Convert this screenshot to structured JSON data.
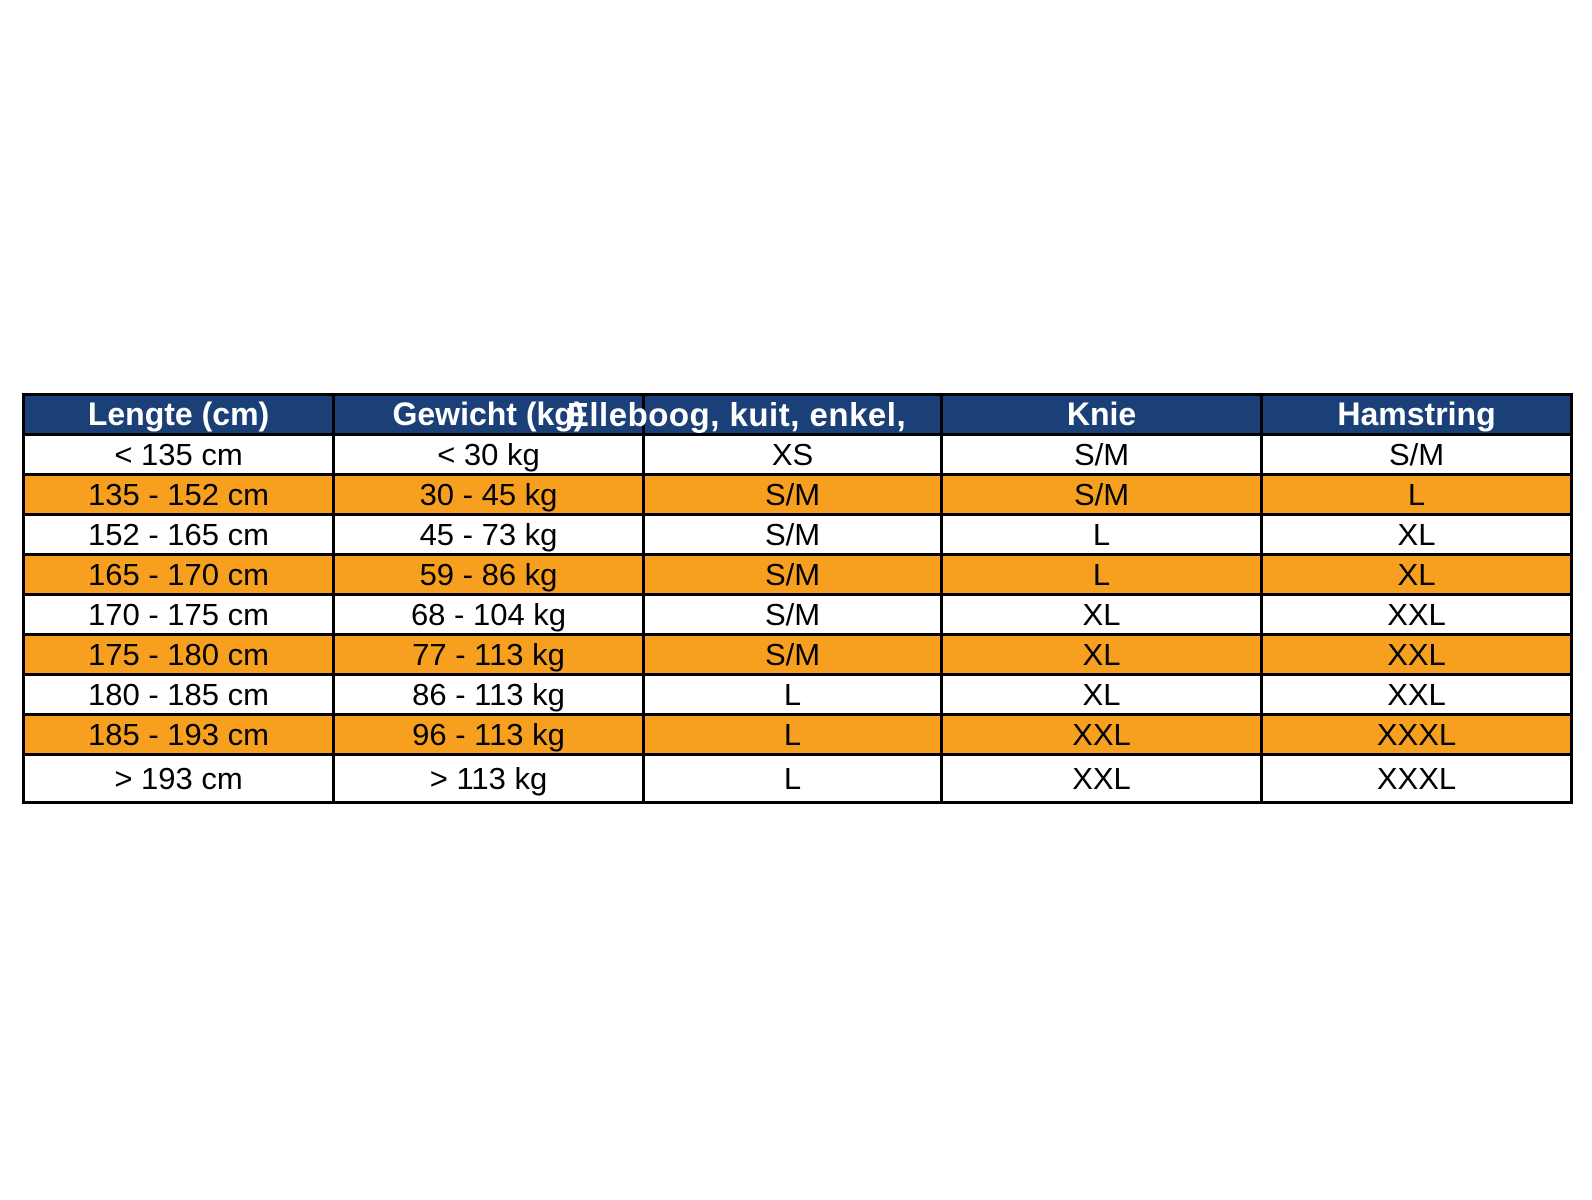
{
  "table": {
    "headers": [
      {
        "label": "Lengte (cm)"
      },
      {
        "label": "Gewicht (kg)"
      },
      {
        "label": "Elleboog, kuit, enkel,"
      },
      {
        "label": "Knie"
      },
      {
        "label": "Hamstring"
      }
    ],
    "rows": [
      {
        "cells": [
          "< 135 cm",
          "< 30 kg",
          "XS",
          "S/M",
          "S/M"
        ],
        "highlighted": false
      },
      {
        "cells": [
          "135 - 152 cm",
          "30 - 45 kg",
          "S/M",
          "S/M",
          "L"
        ],
        "highlighted": true
      },
      {
        "cells": [
          "152 - 165 cm",
          "45 - 73 kg",
          "S/M",
          "L",
          "XL"
        ],
        "highlighted": false
      },
      {
        "cells": [
          "165 - 170 cm",
          "59 - 86 kg",
          "S/M",
          "L",
          "XL"
        ],
        "highlighted": true
      },
      {
        "cells": [
          "170 - 175 cm",
          "68 - 104 kg",
          "S/M",
          "XL",
          "XXL"
        ],
        "highlighted": false
      },
      {
        "cells": [
          "175 - 180 cm",
          "77 - 113 kg",
          "S/M",
          "XL",
          "XXL"
        ],
        "highlighted": true
      },
      {
        "cells": [
          "180 - 185 cm",
          "86 - 113 kg",
          "L",
          "XL",
          "XXL"
        ],
        "highlighted": false
      },
      {
        "cells": [
          "185 - 193 cm",
          "96 - 113 kg",
          "L",
          "XXL",
          "XXXL"
        ],
        "highlighted": true
      },
      {
        "cells": [
          "> 193 cm",
          "> 113 kg",
          "L",
          "XXL",
          "XXXL"
        ],
        "highlighted": false
      }
    ],
    "colors": {
      "header_bg": "#1b4077",
      "header_text": "#ffffff",
      "row_highlight": "#f7a01f",
      "row_default": "#ffffff",
      "body_text": "#000000",
      "border": "#000000"
    }
  },
  "chart_data": {
    "type": "table",
    "columns": [
      "Lengte (cm)",
      "Gewicht (kg)",
      "Elleboog, kuit, enkel,",
      "Knie",
      "Hamstring"
    ],
    "rows": [
      [
        "< 135 cm",
        "< 30 kg",
        "XS",
        "S/M",
        "S/M"
      ],
      [
        "135 - 152 cm",
        "30 - 45 kg",
        "S/M",
        "S/M",
        "L"
      ],
      [
        "152 - 165 cm",
        "45 - 73 kg",
        "S/M",
        "L",
        "XL"
      ],
      [
        "165 - 170 cm",
        "59 - 86 kg",
        "S/M",
        "L",
        "XL"
      ],
      [
        "170 - 175 cm",
        "68 - 104 kg",
        "S/M",
        "XL",
        "XXL"
      ],
      [
        "175 - 180 cm",
        "77 - 113 kg",
        "S/M",
        "XL",
        "XXL"
      ],
      [
        "180 - 185 cm",
        "86 - 113 kg",
        "L",
        "XL",
        "XXL"
      ],
      [
        "185 - 193 cm",
        "96 - 113 kg",
        "L",
        "XXL",
        "XXXL"
      ],
      [
        "> 193 cm",
        "> 113 kg",
        "L",
        "XXL",
        "XXXL"
      ]
    ],
    "highlighted_row_indices": [
      1,
      3,
      5,
      7
    ],
    "layout": {
      "header_bg": "#1b4077",
      "highlight_color": "#f7a01f",
      "grid": "black borders, all cells",
      "legend_position": "none"
    }
  }
}
